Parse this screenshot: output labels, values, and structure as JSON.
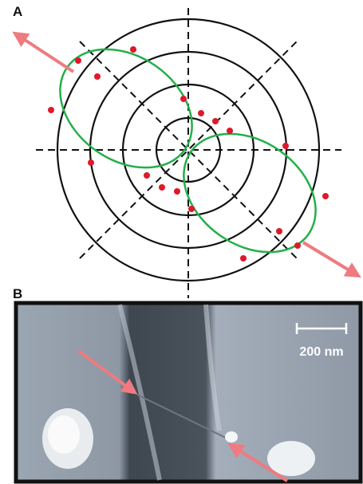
{
  "panels": [
    {
      "label": "A"
    },
    {
      "label": "B",
      "scale_bar": "200 nm"
    }
  ]
}
